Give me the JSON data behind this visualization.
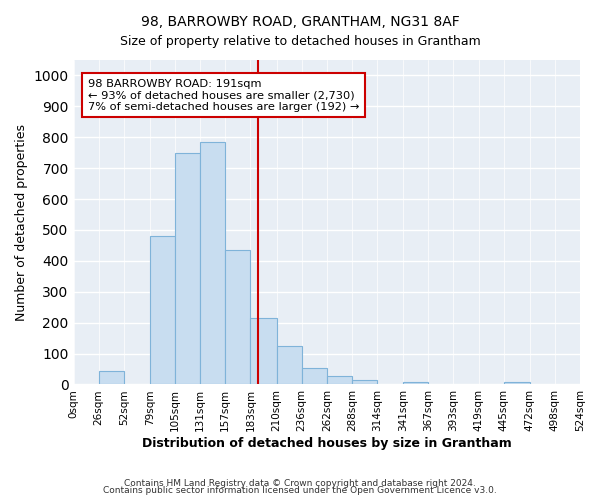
{
  "title": "98, BARROWBY ROAD, GRANTHAM, NG31 8AF",
  "subtitle": "Size of property relative to detached houses in Grantham",
  "xlabel": "Distribution of detached houses by size in Grantham",
  "ylabel": "Number of detached properties",
  "bin_edges": [
    0,
    26,
    52,
    79,
    105,
    131,
    157,
    183,
    210,
    236,
    262,
    288,
    314,
    341,
    367,
    393,
    419,
    445,
    472,
    498,
    524
  ],
  "bar_heights": [
    0,
    45,
    0,
    480,
    750,
    785,
    435,
    215,
    125,
    52,
    28,
    15,
    0,
    8,
    0,
    0,
    0,
    8,
    0,
    0
  ],
  "bar_color": "#c8ddf0",
  "bar_edgecolor": "#7fb3d9",
  "vline_x": 191,
  "vline_color": "#cc0000",
  "ylim": [
    0,
    1050
  ],
  "yticks": [
    0,
    100,
    200,
    300,
    400,
    500,
    600,
    700,
    800,
    900,
    1000
  ],
  "annotation_title": "98 BARROWBY ROAD: 191sqm",
  "annotation_line1": "← 93% of detached houses are smaller (2,730)",
  "annotation_line2": "7% of semi-detached houses are larger (192) →",
  "annotation_box_edgecolor": "#cc0000",
  "annotation_box_facecolor": "#ffffff",
  "footer_line1": "Contains HM Land Registry data © Crown copyright and database right 2024.",
  "footer_line2": "Contains public sector information licensed under the Open Government Licence v3.0.",
  "background_color": "#ffffff",
  "plot_background_color": "#e8eef5",
  "grid_color": "#ffffff",
  "tick_labels": [
    "0sqm",
    "26sqm",
    "52sqm",
    "79sqm",
    "105sqm",
    "131sqm",
    "157sqm",
    "183sqm",
    "210sqm",
    "236sqm",
    "262sqm",
    "288sqm",
    "314sqm",
    "341sqm",
    "367sqm",
    "393sqm",
    "419sqm",
    "445sqm",
    "472sqm",
    "498sqm",
    "524sqm"
  ]
}
